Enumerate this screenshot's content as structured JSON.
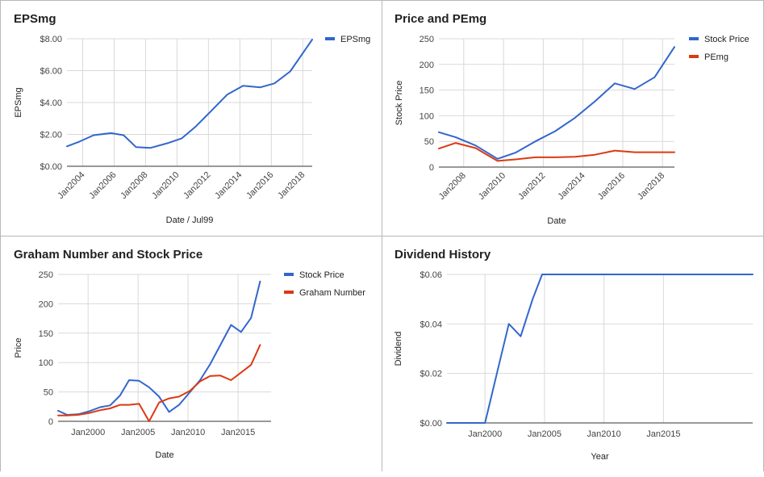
{
  "charts": [
    {
      "id": "eps",
      "title": "EPSmg",
      "xlabel": "Date / Jul99",
      "ylabel": "EPSmg",
      "legend_position": "right",
      "grid": true,
      "chart_data": {
        "type": "line",
        "title": "EPSmg",
        "xlabel": "Date / Jul99",
        "ylabel": "EPSmg",
        "xlim": [
          2003.0,
          2018.6
        ],
        "ylim": [
          0,
          8
        ],
        "x_ticks": [
          {
            "v": 2004.0,
            "label": "Jan2004"
          },
          {
            "v": 2006.0,
            "label": "Jan2006"
          },
          {
            "v": 2008.0,
            "label": "Jan2008"
          },
          {
            "v": 2010.0,
            "label": "Jan2010"
          },
          {
            "v": 2012.0,
            "label": "Jan2012"
          },
          {
            "v": 2014.0,
            "label": "Jan2014"
          },
          {
            "v": 2016.0,
            "label": "Jan2016"
          },
          {
            "v": 2018.0,
            "label": "Jan2018"
          }
        ],
        "y_ticks": [
          {
            "v": 0,
            "label": "$0.00"
          },
          {
            "v": 2,
            "label": "$2.00"
          },
          {
            "v": 4,
            "label": "$4.00"
          },
          {
            "v": 6,
            "label": "$6.00"
          },
          {
            "v": 8,
            "label": "$8.00"
          }
        ],
        "series": [
          {
            "name": "EPSmg",
            "color": "#3366cc",
            "points": [
              [
                2003.0,
                1.25
              ],
              [
                2003.8,
                1.55
              ],
              [
                2004.7,
                1.95
              ],
              [
                2005.8,
                2.08
              ],
              [
                2006.6,
                1.95
              ],
              [
                2007.4,
                1.2
              ],
              [
                2008.3,
                1.15
              ],
              [
                2009.4,
                1.45
              ],
              [
                2010.3,
                1.75
              ],
              [
                2011.2,
                2.5
              ],
              [
                2012.2,
                3.5
              ],
              [
                2013.2,
                4.5
              ],
              [
                2014.2,
                5.05
              ],
              [
                2015.3,
                4.95
              ],
              [
                2016.2,
                5.2
              ],
              [
                2017.2,
                5.95
              ],
              [
                2018.6,
                7.95
              ]
            ]
          }
        ]
      }
    },
    {
      "id": "price-pe",
      "title": "Price and PEmg",
      "xlabel": "Date",
      "ylabel": "Stock Price",
      "legend_position": "right",
      "grid": true,
      "chart_data": {
        "type": "line",
        "title": "Price and PEmg",
        "xlabel": "Date",
        "ylabel": "Stock Price",
        "xlim": [
          2006.75,
          2018.6
        ],
        "ylim": [
          0,
          250
        ],
        "x_ticks": [
          {
            "v": 2008.0,
            "label": "Jan2008"
          },
          {
            "v": 2010.0,
            "label": "Jan2010"
          },
          {
            "v": 2012.0,
            "label": "Jan2012"
          },
          {
            "v": 2014.0,
            "label": "Jan2014"
          },
          {
            "v": 2016.0,
            "label": "Jan2016"
          },
          {
            "v": 2018.0,
            "label": "Jan2018"
          }
        ],
        "y_ticks": [
          {
            "v": 0,
            "label": "0"
          },
          {
            "v": 50,
            "label": "50"
          },
          {
            "v": 100,
            "label": "100"
          },
          {
            "v": 150,
            "label": "150"
          },
          {
            "v": 200,
            "label": "200"
          },
          {
            "v": 250,
            "label": "250"
          }
        ],
        "series": [
          {
            "name": "Stock Price",
            "color": "#3366cc",
            "points": [
              [
                2006.75,
                68
              ],
              [
                2007.6,
                58
              ],
              [
                2008.6,
                42
              ],
              [
                2009.7,
                16
              ],
              [
                2010.6,
                28
              ],
              [
                2011.6,
                50
              ],
              [
                2012.6,
                70
              ],
              [
                2013.6,
                96
              ],
              [
                2014.6,
                128
              ],
              [
                2015.6,
                163
              ],
              [
                2016.6,
                152
              ],
              [
                2017.6,
                175
              ],
              [
                2018.6,
                234
              ]
            ]
          },
          {
            "name": "PEmg",
            "color": "#dc3912",
            "points": [
              [
                2006.75,
                36
              ],
              [
                2007.6,
                47
              ],
              [
                2008.6,
                37
              ],
              [
                2009.7,
                12
              ],
              [
                2010.6,
                15
              ],
              [
                2011.6,
                19
              ],
              [
                2012.6,
                19
              ],
              [
                2013.6,
                20
              ],
              [
                2014.6,
                24
              ],
              [
                2015.6,
                32
              ],
              [
                2016.6,
                29
              ],
              [
                2017.6,
                29
              ],
              [
                2018.6,
                29
              ]
            ]
          }
        ]
      }
    },
    {
      "id": "graham",
      "title": "Graham Number and Stock Price",
      "xlabel": "Date",
      "ylabel": "Price",
      "legend_position": "right",
      "grid": true,
      "chart_data": {
        "type": "line",
        "title": "Graham Number and Stock Price",
        "xlabel": "Date",
        "ylabel": "Price",
        "xlim": [
          1997.0,
          2018.3
        ],
        "ylim": [
          0,
          250
        ],
        "x_ticks": [
          {
            "v": 2000,
            "label": "Jan2000"
          },
          {
            "v": 2005,
            "label": "Jan2005"
          },
          {
            "v": 2010,
            "label": "Jan2010"
          },
          {
            "v": 2015,
            "label": "Jan2015"
          }
        ],
        "y_ticks": [
          {
            "v": 0,
            "label": "0"
          },
          {
            "v": 50,
            "label": "50"
          },
          {
            "v": 100,
            "label": "100"
          },
          {
            "v": 150,
            "label": "150"
          },
          {
            "v": 200,
            "label": "200"
          },
          {
            "v": 250,
            "label": "250"
          }
        ],
        "series": [
          {
            "name": "Stock Price",
            "color": "#3366cc",
            "points": [
              [
                1997.0,
                18
              ],
              [
                1997.9,
                11
              ],
              [
                1999.0,
                12
              ],
              [
                2000.1,
                17
              ],
              [
                2001.2,
                24
              ],
              [
                2002.2,
                27
              ],
              [
                2003.2,
                44
              ],
              [
                2004.1,
                70
              ],
              [
                2005.1,
                69
              ],
              [
                2006.1,
                58
              ],
              [
                2007.1,
                42
              ],
              [
                2008.1,
                16
              ],
              [
                2009.1,
                28
              ],
              [
                2010.2,
                50
              ],
              [
                2011.2,
                70
              ],
              [
                2012.2,
                97
              ],
              [
                2013.2,
                129
              ],
              [
                2014.3,
                164
              ],
              [
                2015.3,
                152
              ],
              [
                2016.3,
                176
              ],
              [
                2017.2,
                238
              ]
            ]
          },
          {
            "name": "Graham Number",
            "color": "#dc3912",
            "points": [
              [
                1997.0,
                10
              ],
              [
                1997.9,
                10
              ],
              [
                1999.0,
                11
              ],
              [
                2000.1,
                14
              ],
              [
                2001.2,
                19
              ],
              [
                2002.2,
                22
              ],
              [
                2003.2,
                28
              ],
              [
                2004.1,
                28
              ],
              [
                2005.1,
                30
              ],
              [
                2006.1,
                0
              ],
              [
                2007.1,
                32
              ],
              [
                2008.1,
                39
              ],
              [
                2009.1,
                42
              ],
              [
                2010.2,
                52
              ],
              [
                2011.2,
                68
              ],
              [
                2012.2,
                77
              ],
              [
                2013.2,
                78
              ],
              [
                2014.3,
                70
              ],
              [
                2015.3,
                83
              ],
              [
                2016.3,
                96
              ],
              [
                2017.2,
                130
              ]
            ]
          }
        ]
      }
    },
    {
      "id": "dividend",
      "title": "Dividend History",
      "xlabel": "Year",
      "ylabel": "Dividend",
      "legend_position": "none",
      "grid": true,
      "chart_data": {
        "type": "line",
        "title": "Dividend History",
        "xlabel": "Year",
        "ylabel": "Dividend",
        "xlim": [
          1996.8,
          2022.5
        ],
        "ylim": [
          0,
          0.06
        ],
        "x_ticks": [
          {
            "v": 2000,
            "label": "Jan2000"
          },
          {
            "v": 2005,
            "label": "Jan2005"
          },
          {
            "v": 2010,
            "label": "Jan2010"
          },
          {
            "v": 2015,
            "label": "Jan2015"
          }
        ],
        "y_ticks": [
          {
            "v": 0,
            "label": "$0.00"
          },
          {
            "v": 0.02,
            "label": "$0.02"
          },
          {
            "v": 0.04,
            "label": "$0.04"
          },
          {
            "v": 0.06,
            "label": "$0.06"
          }
        ],
        "series": [
          {
            "name": "",
            "color": "#3366cc",
            "points": [
              [
                1996.8,
                0
              ],
              [
                2000.0,
                0
              ],
              [
                2001.0,
                0.02
              ],
              [
                2002.0,
                0.04
              ],
              [
                2003.0,
                0.035
              ],
              [
                2004.0,
                0.05
              ],
              [
                2004.8,
                0.06
              ],
              [
                2022.5,
                0.06
              ]
            ]
          }
        ]
      }
    }
  ]
}
